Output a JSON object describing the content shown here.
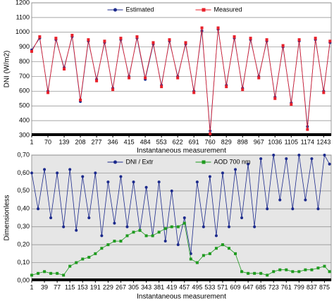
{
  "chart_data": [
    {
      "type": "line",
      "ylabel": "DNI (W/m2)",
      "xlabel": "Instantaneous measurement",
      "legend": "upper center",
      "grid": true,
      "xlim": [
        1,
        1275
      ],
      "xticks": [
        1,
        70,
        139,
        208,
        277,
        346,
        415,
        484,
        553,
        622,
        691,
        760,
        829,
        898,
        967,
        1036,
        1105,
        1174,
        1243
      ],
      "ylim": [
        300,
        1200
      ],
      "yticks": [
        300,
        400,
        500,
        600,
        700,
        800,
        900,
        1000,
        1100,
        1200
      ],
      "x": [
        1,
        35,
        70,
        104,
        139,
        173,
        208,
        242,
        277,
        311,
        346,
        380,
        415,
        449,
        484,
        518,
        553,
        587,
        622,
        656,
        691,
        725,
        760,
        794,
        829,
        863,
        898,
        932,
        967,
        1001,
        1036,
        1070,
        1105,
        1139,
        1174,
        1208,
        1243,
        1270
      ],
      "series": [
        {
          "name": "Estimated",
          "color": "#1c2a8c",
          "marker": "circle",
          "values": [
            880,
            960,
            600,
            950,
            760,
            970,
            530,
            940,
            680,
            930,
            620,
            950,
            700,
            960,
            680,
            920,
            640,
            940,
            700,
            920,
            600,
            1010,
            330,
            1020,
            640,
            960,
            620,
            950,
            700,
            940,
            560,
            900,
            520,
            940,
            360,
            950,
            600,
            930
          ]
        },
        {
          "name": "Measured",
          "color": "#e8202a",
          "marker": "square",
          "values": [
            870,
            970,
            590,
            960,
            750,
            980,
            540,
            950,
            670,
            940,
            610,
            960,
            690,
            970,
            690,
            930,
            630,
            950,
            690,
            930,
            590,
            1030,
            310,
            1030,
            630,
            970,
            610,
            960,
            690,
            950,
            550,
            910,
            510,
            950,
            340,
            960,
            590,
            940
          ]
        }
      ]
    },
    {
      "type": "line",
      "ylabel": "Dimensionless",
      "xlabel": "Instantaneous measurement",
      "legend": "upper center",
      "grid": true,
      "background": "#e6e6e6",
      "xlim": [
        1,
        895
      ],
      "xticks": [
        1,
        39,
        77,
        115,
        153,
        191,
        229,
        267,
        305,
        343,
        381,
        419,
        457,
        495,
        533,
        571,
        609,
        647,
        685,
        723,
        761,
        799,
        837,
        875
      ],
      "ylim": [
        0,
        0.7
      ],
      "yticks": [
        {
          "value": 0,
          "label": "0,00"
        },
        {
          "value": 0.1,
          "label": "0,10"
        },
        {
          "value": 0.2,
          "label": "0,20"
        },
        {
          "value": 0.3,
          "label": "0,30"
        },
        {
          "value": 0.4,
          "label": "0,40"
        },
        {
          "value": 0.5,
          "label": "0,50"
        },
        {
          "value": 0.6,
          "label": "0,60"
        },
        {
          "value": 0.7,
          "label": "0,70"
        }
      ],
      "x": [
        1,
        20,
        39,
        58,
        77,
        96,
        115,
        134,
        153,
        172,
        191,
        210,
        229,
        248,
        267,
        286,
        305,
        324,
        343,
        362,
        381,
        400,
        419,
        438,
        457,
        476,
        495,
        514,
        533,
        552,
        571,
        590,
        609,
        628,
        647,
        666,
        685,
        704,
        723,
        742,
        761,
        780,
        799,
        818,
        837,
        856,
        875,
        890
      ],
      "series": [
        {
          "name": "DNI / Extr",
          "color": "#1c2a8c",
          "marker": "circle",
          "values": [
            0.6,
            0.4,
            0.62,
            0.35,
            0.6,
            0.3,
            0.62,
            0.28,
            0.58,
            0.35,
            0.6,
            0.25,
            0.55,
            0.32,
            0.58,
            0.3,
            0.55,
            0.28,
            0.52,
            0.25,
            0.55,
            0.22,
            0.5,
            0.2,
            0.35,
            0.15,
            0.55,
            0.3,
            0.58,
            0.25,
            0.6,
            0.3,
            0.62,
            0.35,
            0.65,
            0.3,
            0.68,
            0.4,
            0.7,
            0.45,
            0.68,
            0.4,
            0.7,
            0.45,
            0.68,
            0.4,
            0.7,
            0.65
          ]
        },
        {
          "name": "AOD 700 nm",
          "color": "#1f9a1f",
          "marker": "square",
          "values": [
            0.03,
            0.04,
            0.05,
            0.04,
            0.04,
            0.03,
            0.08,
            0.1,
            0.12,
            0.13,
            0.15,
            0.18,
            0.2,
            0.22,
            0.22,
            0.25,
            0.27,
            0.28,
            0.25,
            0.25,
            0.27,
            0.29,
            0.3,
            0.3,
            0.32,
            0.12,
            0.1,
            0.14,
            0.15,
            0.18,
            0.2,
            0.18,
            0.15,
            0.05,
            0.04,
            0.04,
            0.04,
            0.03,
            0.05,
            0.06,
            0.06,
            0.05,
            0.05,
            0.06,
            0.06,
            0.07,
            0.08,
            0.05
          ]
        }
      ]
    }
  ]
}
